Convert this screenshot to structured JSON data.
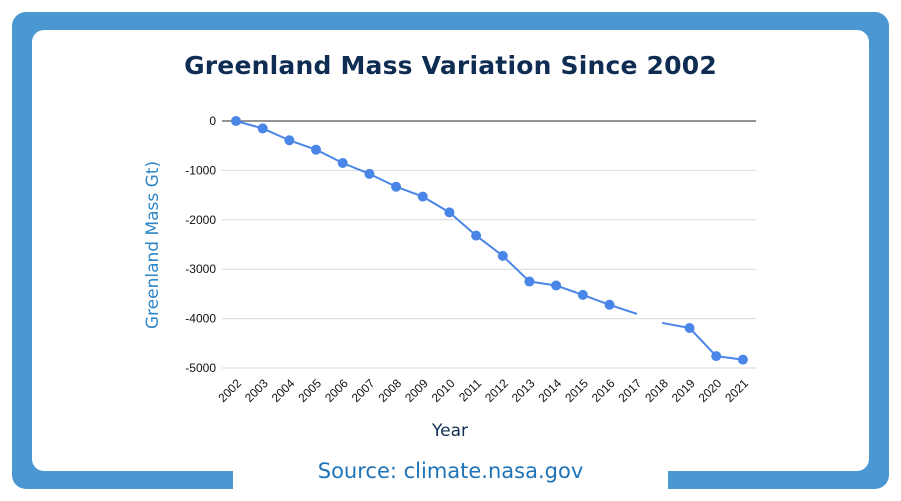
{
  "chart_data": {
    "type": "line",
    "title": "Greenland Mass Variation Since 2002",
    "xlabel": "Year",
    "ylabel": "Greenland Mass Gt)",
    "categories": [
      "2002",
      "2003",
      "2004",
      "2005",
      "2006",
      "2007",
      "2008",
      "2009",
      "2010",
      "2011",
      "2012",
      "2013",
      "2014",
      "2015",
      "2016",
      "2017",
      "2018",
      "2019",
      "2020",
      "2021"
    ],
    "series": [
      {
        "values": [
          0,
          -150,
          -390,
          -580,
          -850,
          -1070,
          -1330,
          -1530,
          -1850,
          -2320,
          -2730,
          -3250,
          -3330,
          -3520,
          -3720,
          null,
          null,
          -4190,
          -4760,
          -4830
        ],
        "segment_extensions": [
          {
            "from": "2016",
            "to": "2017",
            "from_value": -3720,
            "to_value": -3900
          },
          {
            "from": "2018",
            "to": "2019",
            "from_value": -4090,
            "to_value": -4190
          }
        ]
      }
    ],
    "ylim": [
      -5000,
      0
    ],
    "yticks": [
      0,
      -1000,
      -2000,
      -3000,
      -4000,
      -5000
    ],
    "ytick_labels": [
      "0",
      "-1000",
      "-2000",
      "-3000",
      "-4000",
      "-5000"
    ],
    "grid": true,
    "legend": "none",
    "colors": {
      "line": "#4a86e8",
      "grid": "#d9d9d9",
      "zero_line": "#555555",
      "frame": "#4a97d1",
      "title": "#0f2d52",
      "source": "#1f73b7",
      "ylabel": "#2e86c8"
    }
  },
  "source": "Source: climate.nasa.gov"
}
